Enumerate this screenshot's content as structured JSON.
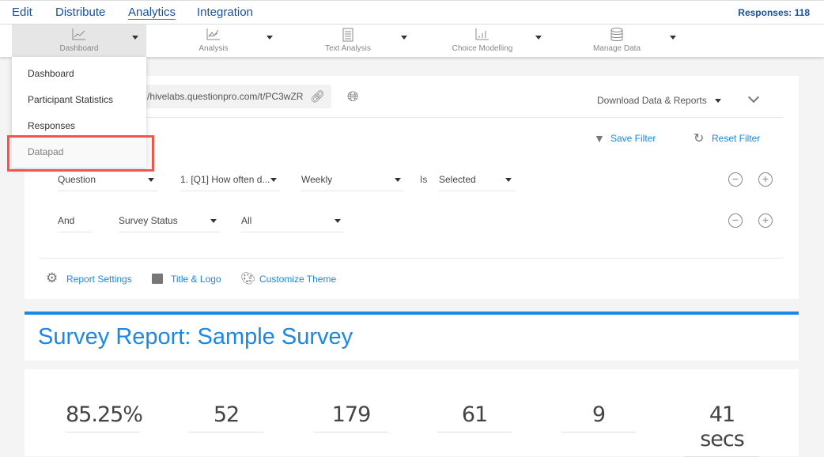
{
  "topnav": {
    "items": [
      "Edit",
      "Distribute",
      "Analytics",
      "Integration"
    ],
    "active": "Analytics",
    "responses": "Responses: 118"
  },
  "toolbar": {
    "tabs": [
      {
        "label": "Dashboard",
        "icon": "line-chart-icon"
      },
      {
        "label": "Analysis",
        "icon": "analysis-chart-icon"
      },
      {
        "label": "Text Analysis",
        "icon": "document-icon"
      },
      {
        "label": "Choice Modelling",
        "icon": "bar-chart-icon"
      },
      {
        "label": "Manage Data",
        "icon": "database-icon"
      }
    ]
  },
  "menu": {
    "items": [
      "Dashboard",
      "Participant Statistics",
      "Responses",
      "Datapad"
    ],
    "highlighted": "Datapad"
  },
  "share": {
    "url": "/hivelabs.questionpro.com/t/PC3wZR",
    "download": "Download Data & Reports"
  },
  "filters": {
    "save": "Save Filter",
    "reset": "Reset Filter",
    "row1": {
      "field": "Question",
      "question": "1. [Q1] How often d...",
      "value": "Weekly",
      "op": "Is",
      "state": "Selected"
    },
    "row2": {
      "conj": "And",
      "field": "Survey Status",
      "value": "All"
    }
  },
  "links": {
    "report_settings": "Report Settings",
    "title_logo": "Title & Logo",
    "customize_theme": "Customize Theme"
  },
  "report": {
    "title": "Survey Report: Sample Survey"
  },
  "stats": [
    "85.25%",
    "52",
    "179",
    "61",
    "9",
    "41 secs"
  ],
  "colors": {
    "accent": "#1b87e6",
    "nav": "#1a4f9c",
    "highlight": "#f0574a"
  }
}
